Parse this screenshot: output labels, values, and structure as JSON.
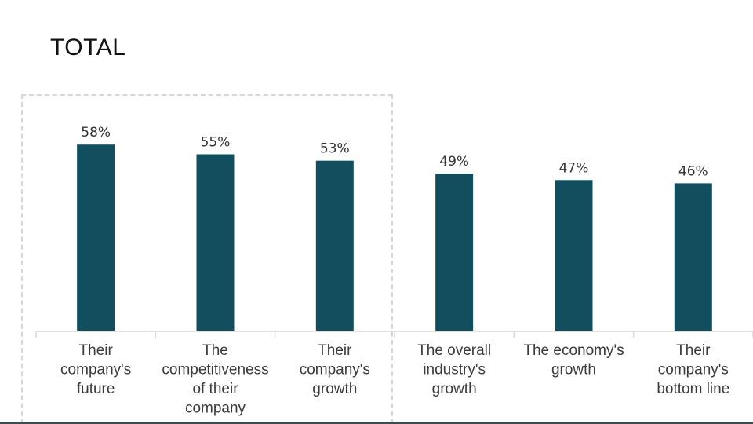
{
  "title": "TOTAL",
  "colors": {
    "bar": "#124f5e",
    "axis": "#d9d9d9",
    "highlight_border": "#d6d6d6"
  },
  "chart_data": {
    "type": "bar",
    "title": "TOTAL",
    "categories": [
      [
        "Their",
        "company's",
        "future"
      ],
      [
        "The",
        "competitiveness",
        "of their",
        "company"
      ],
      [
        "Their",
        "company's",
        "growth"
      ],
      [
        "The overall",
        "industry's",
        "growth"
      ],
      [
        "The economy's",
        "growth"
      ],
      [
        "Their",
        "company's",
        "bottom line"
      ]
    ],
    "values": [
      58,
      55,
      53,
      49,
      47,
      46
    ],
    "value_labels": [
      "58%",
      "55%",
      "53%",
      "49%",
      "47%",
      "46%"
    ],
    "ylim": [
      0,
      100
    ],
    "grid": false,
    "legend": "none",
    "highlighted_categories": [
      0,
      1,
      2
    ]
  }
}
